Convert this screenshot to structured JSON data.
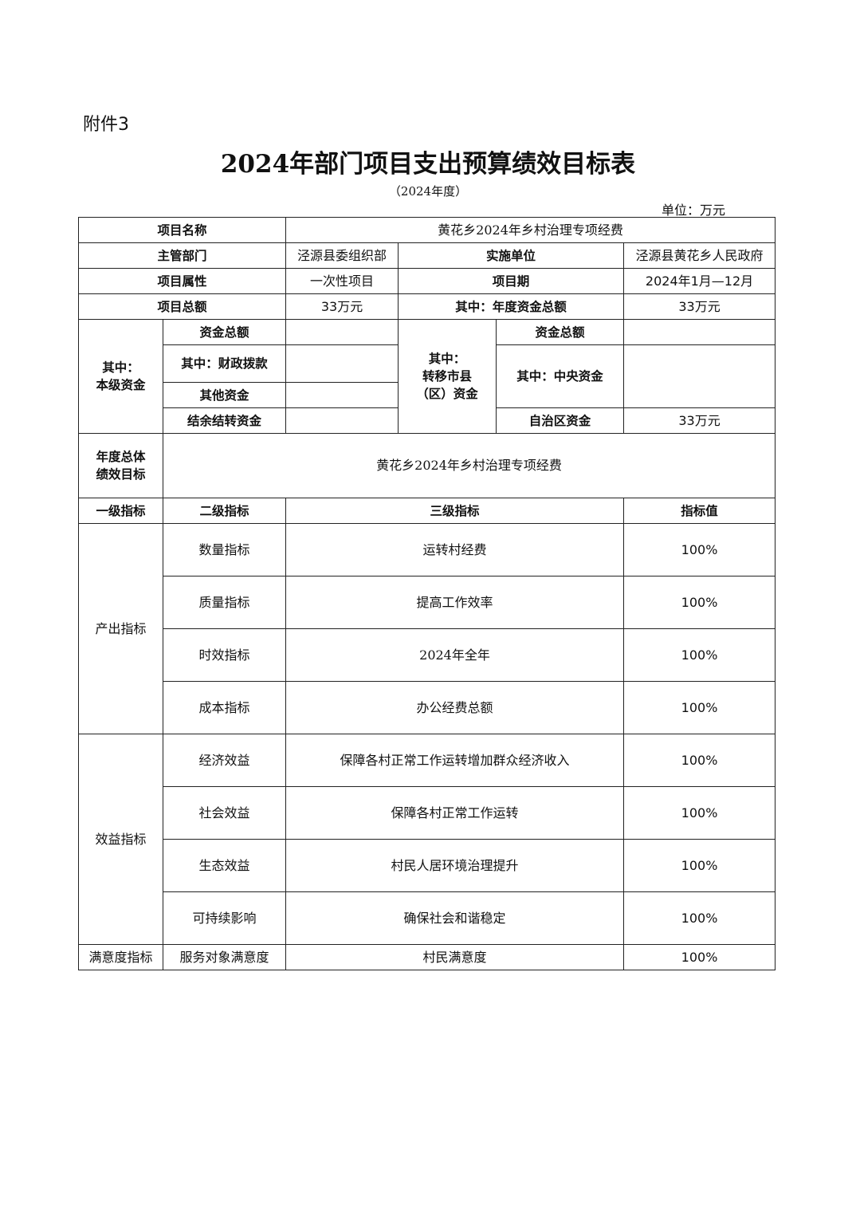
{
  "attachment": "附件3",
  "title": "2024年部门项目支出预算绩效目标表",
  "subtitle": "（2024年度）",
  "unit": "单位：万元",
  "info": {
    "project_name_label": "项目名称",
    "project_name": "黄花乡2024年乡村治理专项经费",
    "dept_label": "主管部门",
    "dept": "泾源县委组织部",
    "impl_label": "实施单位",
    "impl": "泾源县黄花乡人民政府",
    "attr_label": "项目属性",
    "attr": "一次性项目",
    "period_label": "项目期",
    "period": "2024年1月—12月",
    "total_label": "项目总额",
    "total": "33万元",
    "annual_label": "其中：年度资金总额",
    "annual": "33万元"
  },
  "funds": {
    "local_label": "其中：\n本级资金",
    "local_total_label": "资金总额",
    "local_total": "",
    "fiscal_label": "其中：财政拨款",
    "fiscal": "",
    "other_label": "其他资金",
    "other": "",
    "carry_label": "结余结转资金",
    "carry": "",
    "transfer_label": "其中：\n转移市县\n（区）资金",
    "transfer_total_label": "资金总额",
    "transfer_total": "",
    "central_label": "其中：中央资金",
    "central": "",
    "region_label": "自治区资金",
    "region": "33万元"
  },
  "goal_label": "年度总体\n绩效目标",
  "goal": "黄花乡2024年乡村治理专项经费",
  "headers": [
    "一级指标",
    "二级指标",
    "三级指标",
    "指标值"
  ],
  "groups": [
    {
      "name": "产出指标",
      "rows": [
        {
          "l2": "数量指标",
          "l3": "运转村经费",
          "v": "100%"
        },
        {
          "l2": "质量指标",
          "l3": "提高工作效率",
          "v": "100%"
        },
        {
          "l2": "时效指标",
          "l3": "2024年全年",
          "v": "100%"
        },
        {
          "l2": "成本指标",
          "l3": "办公经费总额",
          "v": "100%"
        }
      ]
    },
    {
      "name": "效益指标",
      "rows": [
        {
          "l2": "经济效益",
          "l3": "保障各村正常工作运转增加群众经济收入",
          "v": "100%"
        },
        {
          "l2": "社会效益",
          "l3": "保障各村正常工作运转",
          "v": "100%"
        },
        {
          "l2": "生态效益",
          "l3": "村民人居环境治理提升",
          "v": "100%"
        },
        {
          "l2": "可持续影响",
          "l3": "确保社会和谐稳定",
          "v": "100%"
        }
      ]
    },
    {
      "name": "满意度指标",
      "rows": [
        {
          "l2": "服务对象满意度",
          "l3": "村民满意度",
          "v": "100%"
        }
      ]
    }
  ]
}
